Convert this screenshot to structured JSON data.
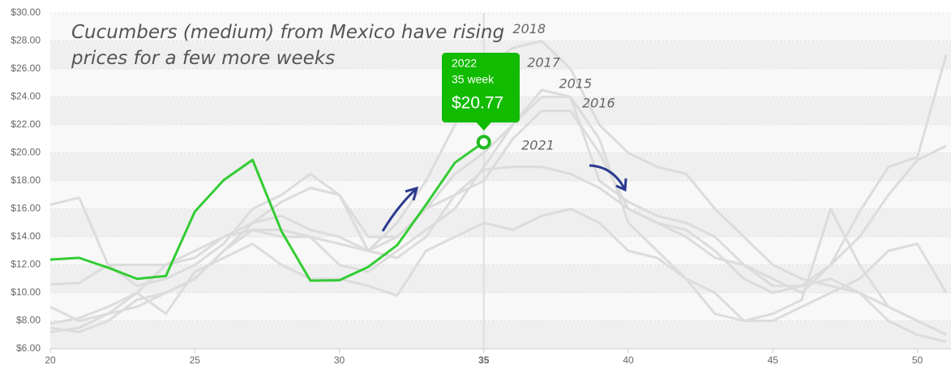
{
  "chart_data": {
    "type": "line",
    "title": "Cucumbers (medium) from Mexico have rising prices for a few more weeks",
    "x": [
      20,
      21,
      22,
      23,
      24,
      25,
      26,
      27,
      28,
      29,
      30,
      31,
      32,
      33,
      34,
      35,
      36,
      37,
      38,
      39,
      40,
      41,
      42,
      43,
      44,
      45,
      46,
      47,
      48,
      49,
      50,
      51
    ],
    "xlim": [
      20,
      51.2
    ],
    "xticks": [
      20,
      25,
      30,
      35,
      40,
      45,
      50
    ],
    "highlight_x": 35,
    "ylim": [
      6,
      30
    ],
    "yticks": [
      {
        "value": 6,
        "label": "$6.00"
      },
      {
        "value": 8,
        "label": "$8.00"
      },
      {
        "value": 10,
        "label": "$10.00"
      },
      {
        "value": 12,
        "label": "$12.00"
      },
      {
        "value": 14,
        "label": "$14.00"
      },
      {
        "value": 16,
        "label": "$16.00"
      },
      {
        "value": 18,
        "label": "$18.00"
      },
      {
        "value": 20,
        "label": "$20.00"
      },
      {
        "value": 22,
        "label": "$22.00"
      },
      {
        "value": 24,
        "label": "$24.00"
      },
      {
        "value": 26,
        "label": "$26.00"
      },
      {
        "value": 28,
        "label": "$28.00"
      },
      {
        "value": 30,
        "label": "$30.00"
      }
    ],
    "grid": true,
    "series": [
      {
        "name": "2018",
        "color": "#dcdcdc",
        "values": [
          7.2,
          7.5,
          8.5,
          9,
          10,
          11,
          13,
          14.5,
          14.5,
          14,
          13.5,
          13,
          15,
          18,
          22,
          26,
          27.5,
          28,
          26,
          22,
          20,
          19,
          18.5,
          16,
          14,
          12,
          11,
          10.5,
          10,
          8,
          7,
          6.5
        ]
      },
      {
        "name": "2017",
        "color": "#dcdcdc",
        "values": [
          9,
          8,
          8.5,
          10,
          12,
          13,
          14,
          15,
          15.5,
          14.5,
          14,
          13,
          14,
          16,
          18.5,
          20,
          22,
          24,
          24,
          18,
          16.5,
          15.5,
          15,
          14,
          12,
          10.5,
          10.5,
          11,
          10,
          9,
          8,
          7
        ]
      },
      {
        "name": "2015",
        "color": "#dcdcdc",
        "values": [
          16.3,
          16.8,
          12,
          12,
          12,
          12.5,
          14,
          14.5,
          14,
          14,
          12,
          11.5,
          13,
          14.5,
          16,
          19,
          22,
          24.5,
          24,
          21,
          15,
          13,
          11,
          10,
          8,
          8,
          9,
          10,
          11,
          13,
          13.5,
          10
        ]
      },
      {
        "name": "2016",
        "color": "#dcdcdc",
        "values": [
          10.6,
          10.7,
          12,
          10.5,
          11,
          12,
          13.5,
          16,
          17,
          18.5,
          17,
          14,
          14,
          16,
          17,
          18,
          21,
          23,
          23,
          20,
          16,
          15,
          14.5,
          13,
          11,
          10,
          10.5,
          12,
          14,
          17,
          19.5,
          20.5
        ]
      },
      {
        "name": "2021",
        "color": "#dcdcdc",
        "values": [
          7.5,
          7.2,
          8,
          9.5,
          10,
          11,
          13,
          15,
          16.5,
          17.5,
          17,
          13,
          12.5,
          14,
          17,
          18.8,
          19,
          19,
          18.5,
          17.5,
          16,
          15,
          14,
          12.5,
          12,
          11,
          10,
          12,
          15.8,
          19,
          19.7,
          27
        ]
      },
      {
        "color": "#dcdcdc",
        "values": [
          7.8,
          8.2,
          9,
          10,
          8.5,
          11.5,
          12.5,
          13.5,
          12,
          11,
          11,
          10.5,
          9.8,
          13,
          14,
          15,
          14.5,
          15.5,
          16,
          15,
          13,
          12.5,
          11,
          8.5,
          8,
          8.5,
          9.5,
          16,
          12,
          9,
          8,
          7
        ]
      },
      {
        "name": "2022",
        "color": "#33cc33",
        "values": [
          12.38,
          12.5,
          11.8,
          11,
          11.2,
          15.8,
          18.06,
          19.5,
          14.4,
          10.87,
          10.9,
          11.85,
          13.4,
          16.3,
          19.3,
          20.77,
          null,
          null,
          null,
          null,
          null,
          null,
          null,
          null,
          null,
          null,
          null,
          null,
          null,
          null,
          null,
          null
        ]
      }
    ],
    "tooltip": {
      "x_label": "35 week",
      "value_label": "$20.77"
    }
  }
}
